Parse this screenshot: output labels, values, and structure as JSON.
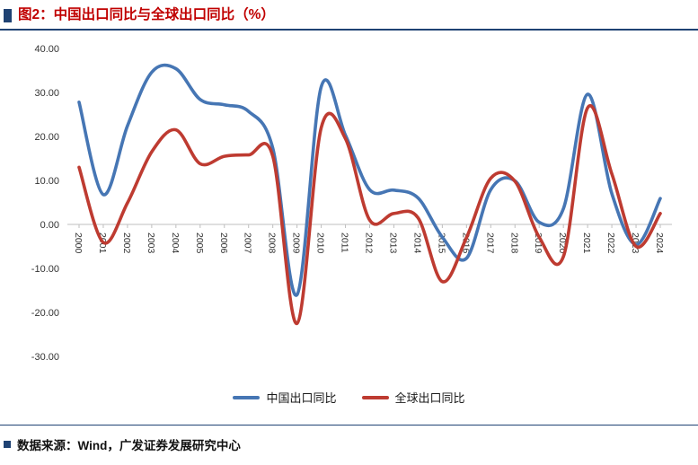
{
  "header": {
    "title": "图2：中国出口同比与全球出口同比（%）"
  },
  "footer": {
    "source": "数据来源：Wind，广发证券发展研究中心"
  },
  "colors": {
    "accent_navy": "#1F4273",
    "title_red": "#C00000",
    "axis_grey": "#BFBFBF",
    "china_blue": "#4676B4",
    "global_red": "#BE3B31"
  },
  "chart_data": {
    "type": "line",
    "title": "图2：中国出口同比与全球出口同比（%）",
    "categories": [
      "2000",
      "2001",
      "2002",
      "2003",
      "2004",
      "2005",
      "2006",
      "2007",
      "2008",
      "2009",
      "2010",
      "2011",
      "2012",
      "2013",
      "2014",
      "2015",
      "2016",
      "2017",
      "2018",
      "2019",
      "2020",
      "2021",
      "2022",
      "2023",
      "2024"
    ],
    "series": [
      {
        "key": "china-exports-yoy",
        "name": "中国出口同比",
        "color": "#4676B4",
        "values": [
          27.8,
          6.8,
          22.4,
          34.6,
          35.4,
          28.4,
          27.2,
          25.7,
          17.3,
          -16.0,
          31.3,
          20.3,
          7.9,
          7.8,
          6.0,
          -2.9,
          -7.7,
          7.9,
          9.9,
          0.5,
          3.6,
          29.6,
          7.0,
          -4.6,
          5.9
        ]
      },
      {
        "key": "global-exports-yoy",
        "name": "全球出口同比",
        "color": "#BE3B31",
        "values": [
          13.0,
          -4.1,
          4.9,
          16.5,
          21.5,
          13.8,
          15.5,
          15.8,
          15.5,
          -22.5,
          22.0,
          19.5,
          1.0,
          2.5,
          1.5,
          -13.0,
          -3.0,
          10.5,
          9.8,
          -2.9,
          -7.3,
          26.5,
          11.5,
          -5.0,
          2.5
        ]
      }
    ],
    "xlabel": "",
    "ylabel": "",
    "ylim": [
      -30,
      40
    ],
    "yticks": [
      40,
      30,
      20,
      10,
      0,
      -10,
      -20,
      -30
    ],
    "ytick_format": "0.00",
    "grid": false,
    "legend_position": "bottom",
    "line_style": "smooth"
  }
}
